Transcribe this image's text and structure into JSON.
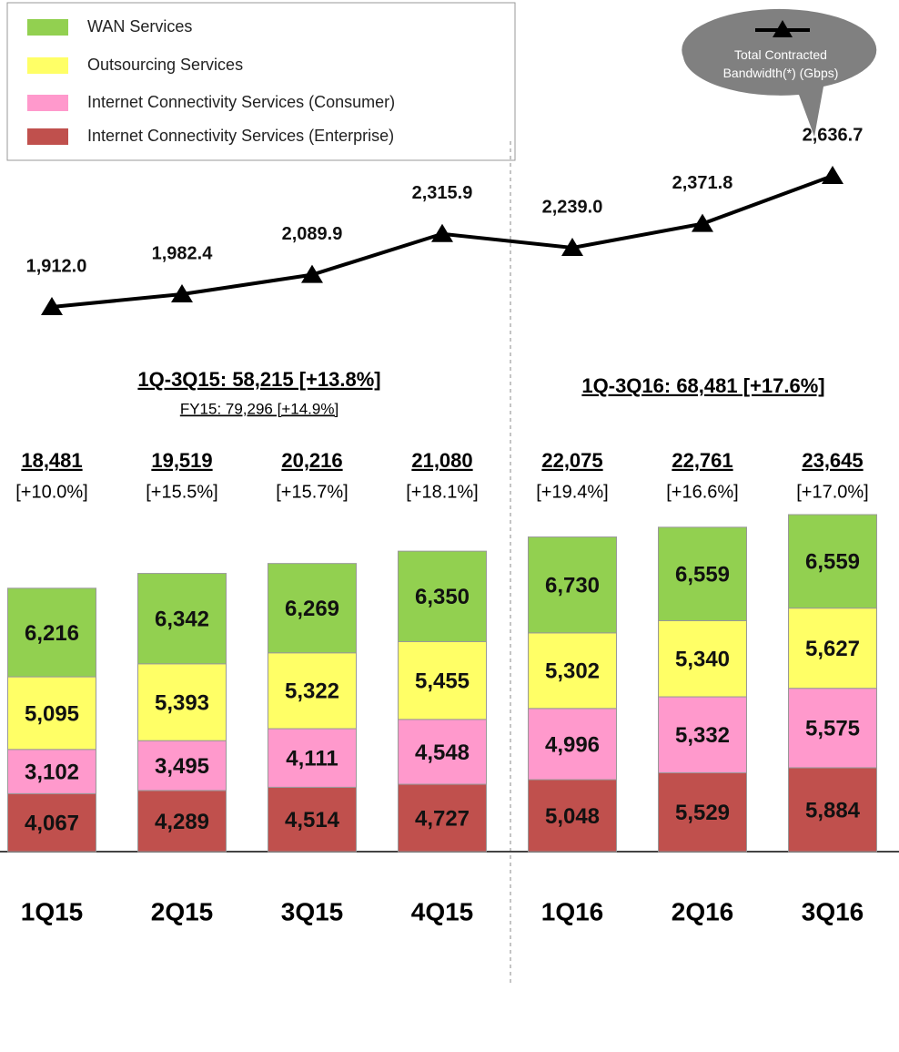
{
  "chart_data": {
    "type": "bar",
    "stacked": true,
    "categories": [
      "1Q15",
      "2Q15",
      "3Q15",
      "4Q15",
      "1Q16",
      "2Q16",
      "3Q16"
    ],
    "series": [
      {
        "name": "Internet Connectivity Services (Enterprise)",
        "color": "#c0504d",
        "values": [
          4067,
          4289,
          4514,
          4727,
          5048,
          5529,
          5884
        ],
        "value_labels": [
          "4,067",
          "4,289",
          "4,514",
          "4,727",
          "5,048",
          "5,529",
          "5,884"
        ]
      },
      {
        "name": "Internet Connectivity Services (Consumer)",
        "color": "#ff99cc",
        "values": [
          3102,
          3495,
          4111,
          4548,
          4996,
          5332,
          5575
        ],
        "value_labels": [
          "3,102",
          "3,495",
          "4,111",
          "4,548",
          "4,996",
          "5,332",
          "5,575"
        ]
      },
      {
        "name": "Outsourcing Services",
        "color": "#ffff66",
        "values": [
          5095,
          5393,
          5322,
          5455,
          5302,
          5340,
          5627
        ],
        "value_labels": [
          "5,095",
          "5,393",
          "5,322",
          "5,455",
          "5,302",
          "5,340",
          "5,627"
        ]
      },
      {
        "name": "WAN Services",
        "color": "#92d050",
        "values": [
          6216,
          6342,
          6269,
          6350,
          6730,
          6559,
          6559
        ],
        "value_labels": [
          "6,216",
          "6,342",
          "6,269",
          "6,350",
          "6,730",
          "6,559",
          "6,559"
        ]
      }
    ],
    "totals": {
      "values": [
        18481,
        19519,
        20216,
        21080,
        22075,
        22761,
        23645
      ],
      "value_labels": [
        "18,481",
        "19,519",
        "20,216",
        "21,080",
        "22,075",
        "22,761",
        "23,645"
      ],
      "growth": [
        "[+10.0%]",
        "[+15.5%]",
        "[+15.7%]",
        "[+18.1%]",
        "[+19.4%]",
        "[+16.6%]",
        "[+17.0%]"
      ]
    },
    "line": {
      "name": "Total Contracted Bandwidth(*) (Gbps)",
      "color": "#000000",
      "values": [
        1912.0,
        1982.4,
        2089.9,
        2315.9,
        2239.0,
        2371.8,
        2636.7
      ],
      "value_labels": [
        "1,912.0",
        "1,982.4",
        "2,089.9",
        "2,315.9",
        "2,239.0",
        "2,371.8",
        "2,636.7"
      ]
    },
    "annotations": [
      "1Q-3Q15: 58,215 [+13.8%]",
      "FY15: 79,296 [+14.9%]",
      "1Q-3Q16: 68,481 [+17.6%]"
    ]
  }
}
